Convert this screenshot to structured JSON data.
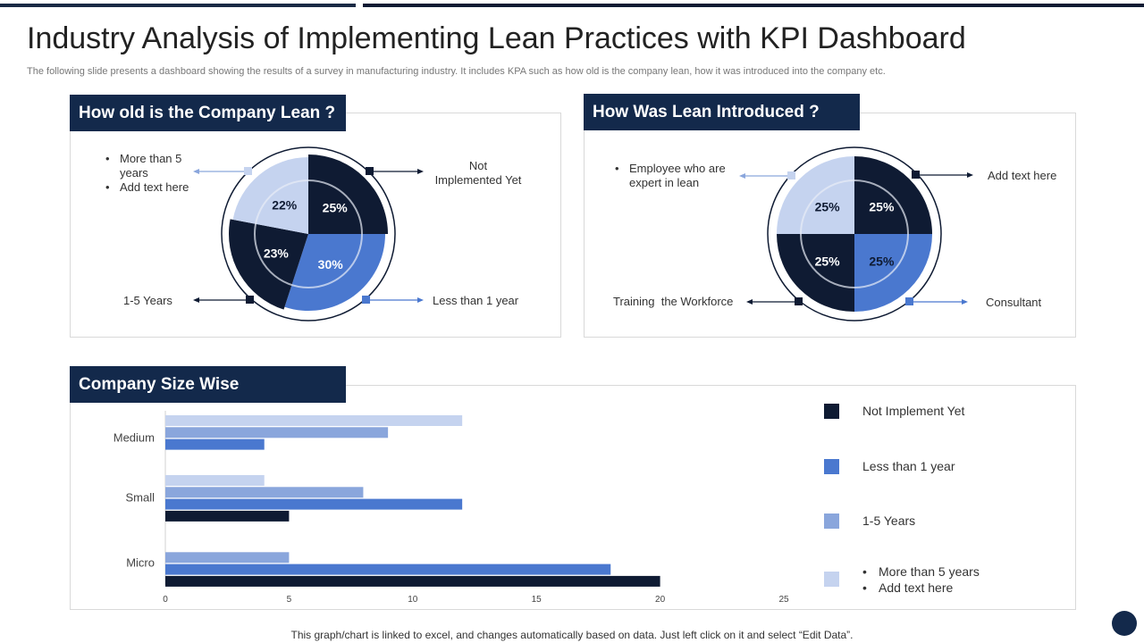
{
  "page": {
    "title": "Industry Analysis of Implementing Lean Practices with KPI Dashboard",
    "subtitle": "The following slide presents a dashboard showing the results of a survey in manufacturing industry. It includes KPA such as how old is the company lean, how it was introduced into the company etc.",
    "footer": "This graph/chart is linked to excel,  and changes automatically based on data. Just left click on it and select “Edit Data”."
  },
  "colors": {
    "dark": "#0f1b33",
    "blue": "#4a78cf",
    "mid": "#8aa6dc",
    "light": "#c5d3ef",
    "header": "#13294b"
  },
  "chart_data": [
    {
      "type": "pie",
      "title": "How old is the Company Lean ?",
      "slices": [
        {
          "label": "Not Implemented Yet",
          "value": 25,
          "display": "25%",
          "color": "#0f1b33"
        },
        {
          "label": "Less than 1 year",
          "value": 30,
          "display": "30%",
          "color": "#4a78cf"
        },
        {
          "label": "1-5 Years",
          "value": 23,
          "display": "23%",
          "color": "#0f1b33"
        },
        {
          "label": "More than 5 years",
          "value": 22,
          "display": "22%",
          "color": "#c5d3ef"
        }
      ],
      "callouts": {
        "top_right": "Not Implemented Yet",
        "top_right_lines": [
          "Not",
          "Implemented  Yet"
        ],
        "bottom_right": "Less than 1 year",
        "bottom_left": "1-5 Years",
        "top_left_bullets": [
          "More than 5 years",
          "Add text here"
        ]
      }
    },
    {
      "type": "pie",
      "title": "How Was Lean Introduced ?",
      "slices": [
        {
          "label": "Add text here",
          "value": 25,
          "display": "25%",
          "color": "#0f1b33"
        },
        {
          "label": "Consultant",
          "value": 25,
          "display": "25%",
          "color": "#4a78cf"
        },
        {
          "label": "Training  the Workforce",
          "value": 25,
          "display": "25%",
          "color": "#0f1b33"
        },
        {
          "label": "Employee who are expert in lean",
          "value": 25,
          "display": "25%",
          "color": "#c5d3ef"
        }
      ],
      "callouts": {
        "top_right": "Add text here",
        "bottom_right": "Consultant",
        "bottom_left": "Training  the Workforce",
        "top_left_bullets": [
          "Employee who are expert in lean"
        ]
      }
    },
    {
      "type": "bar",
      "orientation": "horizontal",
      "title": "Company Size Wise",
      "categories": [
        "Medium",
        "Small",
        "Micro"
      ],
      "series": [
        {
          "name": "Not Implement Yet",
          "color": "#0f1b33",
          "values": [
            0,
            5,
            20
          ]
        },
        {
          "name": "Less than 1 year",
          "color": "#4a78cf",
          "values": [
            4,
            12,
            18
          ]
        },
        {
          "name": "1-5 Years",
          "color": "#8aa6dc",
          "values": [
            9,
            8,
            5
          ]
        },
        {
          "name": "More than 5 years",
          "color": "#c5d3ef",
          "values": [
            12,
            4,
            0
          ]
        }
      ],
      "legend_extra": [
        "More than 5 years",
        "Add text here"
      ],
      "xlim": [
        0,
        25
      ],
      "xticks": [
        "0",
        "5",
        "10",
        "15",
        "20",
        "25"
      ],
      "grid": false,
      "legend": "right"
    }
  ]
}
